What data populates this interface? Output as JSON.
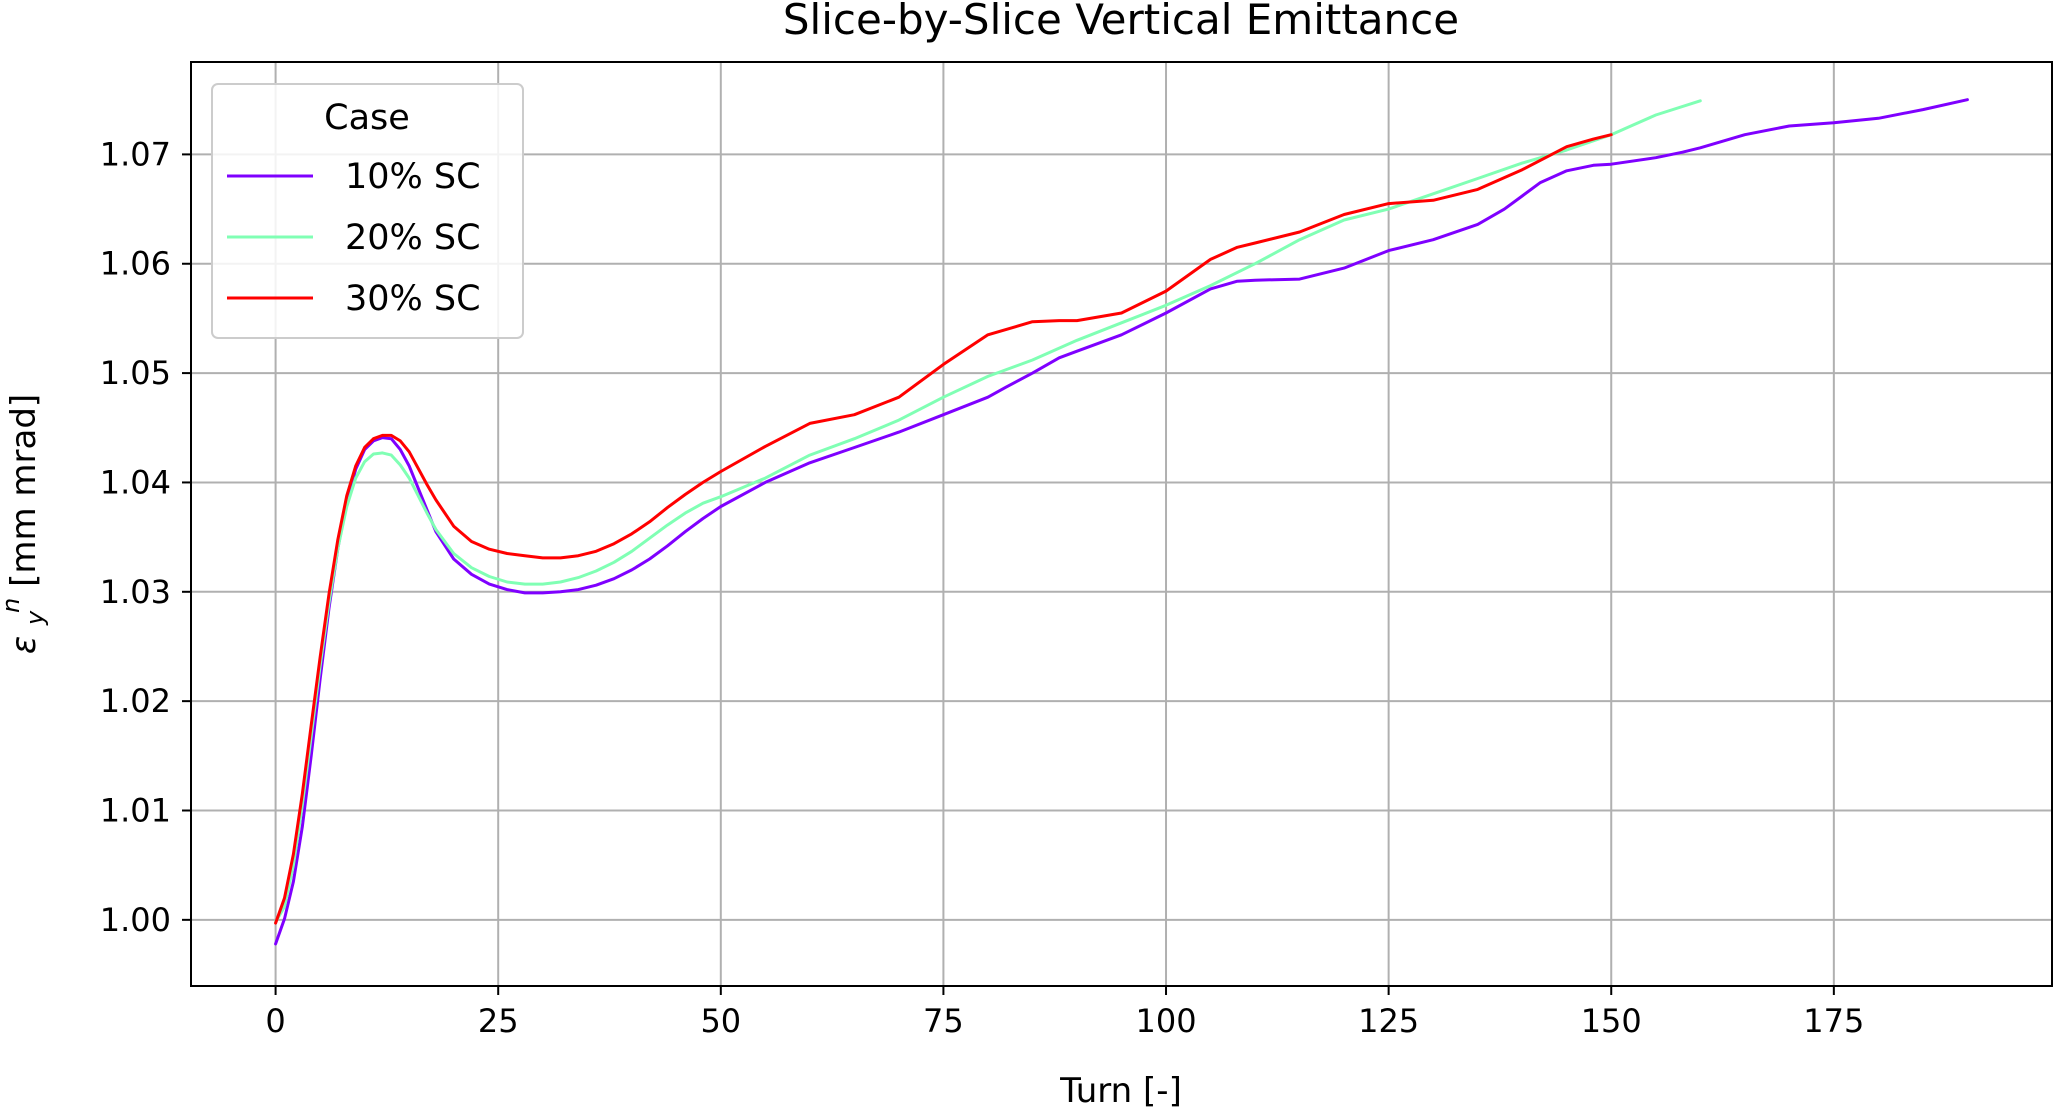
{
  "chart_data": {
    "type": "line",
    "title": "Slice-by-Slice Vertical Emittance",
    "xlabel": "Turn [-]",
    "ylabel": "ε_y^n [mm mrad]",
    "ylabel_main": "ε",
    "ylabel_sub": "y",
    "ylabel_sup": "n",
    "ylabel_units": " [mm mrad]",
    "xlim": [
      -9.5,
      199.5
    ],
    "ylim": [
      0.99395,
      1.07845
    ],
    "xticks": [
      0,
      25,
      50,
      75,
      100,
      125,
      150,
      175
    ],
    "xtick_labels": [
      "0",
      "25",
      "50",
      "75",
      "100",
      "125",
      "150",
      "175"
    ],
    "yticks": [
      1.0,
      1.01,
      1.02,
      1.03,
      1.04,
      1.05,
      1.06,
      1.07
    ],
    "ytick_labels": [
      "1.00",
      "1.01",
      "1.02",
      "1.03",
      "1.04",
      "1.05",
      "1.06",
      "1.07"
    ],
    "grid": true,
    "legend": {
      "title": "Case",
      "placement": "top-left"
    },
    "series": [
      {
        "name": "10% SC",
        "color": "#7f00ff",
        "x": [
          0,
          1,
          2,
          3,
          4,
          5,
          6,
          7,
          8,
          9,
          10,
          11,
          12,
          13,
          14,
          15,
          16,
          17,
          18,
          20,
          22,
          24,
          26,
          28,
          30,
          32,
          34,
          36,
          38,
          40,
          42,
          44,
          46,
          48,
          50,
          55,
          60,
          65,
          70,
          75,
          80,
          82,
          85,
          88,
          90,
          95,
          100,
          105,
          108,
          110,
          115,
          120,
          125,
          130,
          135,
          138,
          140,
          142,
          145,
          148,
          150,
          155,
          158,
          160,
          165,
          170,
          175,
          180,
          185,
          190
        ],
        "y": [
          0.9978,
          1.0001,
          1.0035,
          1.0085,
          1.015,
          1.022,
          1.0285,
          1.034,
          1.0382,
          1.0412,
          1.043,
          1.0438,
          1.0441,
          1.044,
          1.043,
          1.0415,
          1.0395,
          1.0375,
          1.0355,
          1.033,
          1.0316,
          1.0307,
          1.0302,
          1.0299,
          1.0299,
          1.03,
          1.0302,
          1.0306,
          1.0312,
          1.032,
          1.033,
          1.0342,
          1.0355,
          1.0367,
          1.0378,
          1.04,
          1.0418,
          1.0432,
          1.0446,
          1.0462,
          1.0478,
          1.0487,
          1.05,
          1.0514,
          1.052,
          1.0535,
          1.0555,
          1.0577,
          1.0584,
          1.0585,
          1.0586,
          1.0596,
          1.0612,
          1.0622,
          1.0636,
          1.065,
          1.0662,
          1.0674,
          1.0685,
          1.069,
          1.0691,
          1.0697,
          1.0702,
          1.0706,
          1.0718,
          1.0726,
          1.0729,
          1.0733,
          1.0741,
          1.075
        ]
      },
      {
        "name": "20% SC",
        "color": "#80ffb4",
        "x": [
          0,
          1,
          2,
          3,
          4,
          5,
          6,
          7,
          8,
          9,
          10,
          11,
          12,
          13,
          14,
          15,
          16,
          17,
          18,
          20,
          22,
          24,
          26,
          28,
          30,
          32,
          34,
          36,
          38,
          40,
          42,
          44,
          46,
          48,
          50,
          55,
          60,
          65,
          70,
          75,
          80,
          85,
          90,
          95,
          100,
          105,
          110,
          115,
          120,
          125,
          130,
          135,
          140,
          145,
          150,
          155,
          160
        ],
        "y": [
          0.9998,
          1.0012,
          1.005,
          1.0105,
          1.0168,
          1.0232,
          1.029,
          1.034,
          1.0378,
          1.0404,
          1.0419,
          1.0426,
          1.0427,
          1.0425,
          1.0416,
          1.0404,
          1.0388,
          1.0372,
          1.0357,
          1.0335,
          1.0322,
          1.0314,
          1.0309,
          1.0307,
          1.0307,
          1.0309,
          1.0313,
          1.0319,
          1.0327,
          1.0337,
          1.0349,
          1.0361,
          1.0372,
          1.0381,
          1.0387,
          1.0404,
          1.0425,
          1.044,
          1.0457,
          1.0478,
          1.0497,
          1.0512,
          1.053,
          1.0546,
          1.0562,
          1.058,
          1.06,
          1.0622,
          1.064,
          1.065,
          1.0664,
          1.0678,
          1.0692,
          1.0704,
          1.0718,
          1.0736,
          1.0749
        ]
      },
      {
        "name": "30% SC",
        "color": "#ff0000",
        "x": [
          0,
          1,
          2,
          3,
          4,
          5,
          6,
          7,
          8,
          9,
          10,
          11,
          12,
          13,
          14,
          15,
          16,
          17,
          18,
          20,
          22,
          24,
          26,
          28,
          30,
          32,
          34,
          36,
          38,
          40,
          42,
          44,
          46,
          48,
          50,
          55,
          60,
          65,
          70,
          75,
          80,
          85,
          88,
          90,
          95,
          100,
          105,
          108,
          110,
          115,
          120,
          125,
          130,
          135,
          140,
          145,
          148,
          150
        ],
        "y": [
          0.9997,
          1.002,
          1.006,
          1.0115,
          1.0178,
          1.024,
          1.0298,
          1.0348,
          1.0388,
          1.0415,
          1.0432,
          1.044,
          1.0443,
          1.0443,
          1.0438,
          1.0428,
          1.0413,
          1.0398,
          1.0384,
          1.036,
          1.0346,
          1.0339,
          1.0335,
          1.0333,
          1.0331,
          1.0331,
          1.0333,
          1.0337,
          1.0344,
          1.0353,
          1.0364,
          1.0377,
          1.0389,
          1.04,
          1.041,
          1.0433,
          1.0454,
          1.0462,
          1.0478,
          1.0508,
          1.0535,
          1.0547,
          1.0548,
          1.0548,
          1.0555,
          1.0575,
          1.0604,
          1.0615,
          1.0619,
          1.0629,
          1.0645,
          1.0655,
          1.0658,
          1.0668,
          1.0686,
          1.0707,
          1.0714,
          1.0718
        ]
      }
    ]
  }
}
